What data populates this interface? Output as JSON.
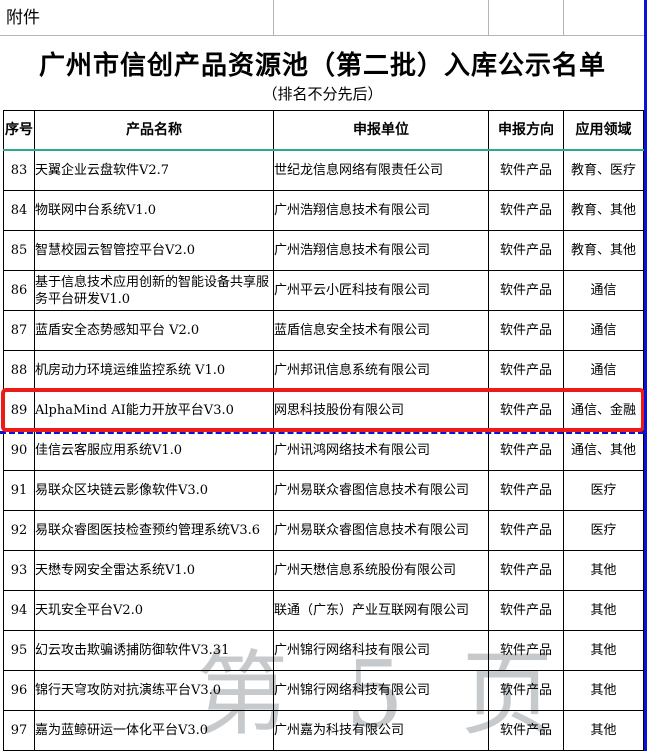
{
  "document": {
    "attachment_label": "附件",
    "title": "广州市信创产品资源池（第二批）入库公示名单",
    "subtitle": "（排名不分先后）",
    "watermark_text": "第 5 页"
  },
  "colors": {
    "header_underline_teal": "#2aab8b",
    "highlight_red": "#ec1b17",
    "page_break_blue": "#0a14d8",
    "gridline_gray": "#b5b5b5",
    "watermark_gray": "#9aa0a6"
  },
  "table": {
    "headers": [
      "序号",
      "产品名称",
      "申报单位",
      "申报方向",
      "应用领域"
    ],
    "rows": [
      {
        "no": "83",
        "product": "天翼企业云盘软件V2.7",
        "company": "世纪龙信息网络有限责任公司",
        "direction": "软件产品",
        "field": "教育、医疗",
        "highlighted": false
      },
      {
        "no": "84",
        "product": "物联网中台系统V1.0",
        "company": "广州浩翔信息技术有限公司",
        "direction": "软件产品",
        "field": "教育、其他",
        "highlighted": false
      },
      {
        "no": "85",
        "product": "智慧校园云智管控平台V2.0",
        "company": "广州浩翔信息技术有限公司",
        "direction": "软件产品",
        "field": "教育、其他",
        "highlighted": false
      },
      {
        "no": "86",
        "product": "基于信息技术应用创新的智能设备共享服务平台研发V1.0",
        "company": "广州平云小匠科技有限公司",
        "direction": "软件产品",
        "field": "通信",
        "highlighted": false
      },
      {
        "no": "87",
        "product": "蓝盾安全态势感知平台 V2.0",
        "company": "蓝盾信息安全技术有限公司",
        "direction": "软件产品",
        "field": "通信",
        "highlighted": false
      },
      {
        "no": "88",
        "product": "机房动力环境运维监控系统 V1.0",
        "company": "广州邦讯信息系统有限公司",
        "direction": "软件产品",
        "field": "通信",
        "highlighted": false
      },
      {
        "no": "89",
        "product": "AlphaMind AI能力开放平台V3.0",
        "company": "网思科技股份有限公司",
        "direction": "软件产品",
        "field": "通信、金融",
        "highlighted": true
      },
      {
        "no": "90",
        "product": "佳信云客服应用系统V1.0",
        "company": "广州讯鸿网络技术有限公司",
        "direction": "软件产品",
        "field": "通信、其他",
        "highlighted": false
      },
      {
        "no": "91",
        "product": "易联众区块链云影像软件V3.0",
        "company": "广州易联众睿图信息技术有限公司",
        "direction": "软件产品",
        "field": "医疗",
        "highlighted": false
      },
      {
        "no": "92",
        "product": "易联众睿图医技检查预约管理系统V3.6",
        "company": "广州易联众睿图信息技术有限公司",
        "direction": "软件产品",
        "field": "医疗",
        "highlighted": false
      },
      {
        "no": "93",
        "product": "天懋专网安全雷达系统V1.0",
        "company": "广州天懋信息系统股份有限公司",
        "direction": "软件产品",
        "field": "其他",
        "highlighted": false
      },
      {
        "no": "94",
        "product": "天玑安全平台V2.0",
        "company": "联通（广东）产业互联网有限公司",
        "direction": "软件产品",
        "field": "其他",
        "highlighted": false
      },
      {
        "no": "95",
        "product": "幻云攻击欺骗诱捕防御软件V3.31",
        "company": "广州锦行网络科技有限公司",
        "direction": "软件产品",
        "field": "其他",
        "highlighted": false
      },
      {
        "no": "96",
        "product": "锦行天穹攻防对抗演练平台V3.0",
        "company": "广州锦行网络科技有限公司",
        "direction": "软件产品",
        "field": "其他",
        "highlighted": false
      },
      {
        "no": "97",
        "product": "嘉为蓝鲸研运一体化平台V3.0",
        "company": "广州嘉为科技有限公司",
        "direction": "软件产品",
        "field": "其他",
        "highlighted": false
      }
    ]
  }
}
